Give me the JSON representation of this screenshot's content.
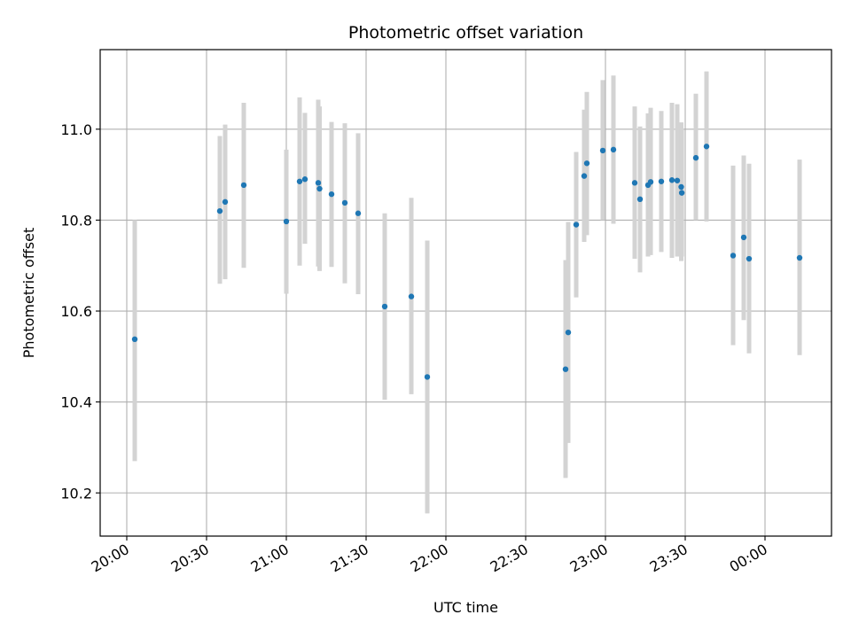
{
  "chart_data": {
    "type": "scatter",
    "title": "Photometric offset variation",
    "xlabel": "UTC time",
    "ylabel": "Photometric offset",
    "x_unit": "UTC time (HH:MM)",
    "xlim": [
      "19:50",
      "24:25"
    ],
    "ylim": [
      10.105,
      11.175
    ],
    "x_ticks": [
      {
        "value": "20:00",
        "label": "20:00"
      },
      {
        "value": "20:30",
        "label": "20:30"
      },
      {
        "value": "21:00",
        "label": "21:00"
      },
      {
        "value": "21:30",
        "label": "21:30"
      },
      {
        "value": "22:00",
        "label": "22:00"
      },
      {
        "value": "22:30",
        "label": "22:30"
      },
      {
        "value": "23:00",
        "label": "23:00"
      },
      {
        "value": "23:30",
        "label": "23:30"
      },
      {
        "value": "24:00",
        "label": "00:00"
      }
    ],
    "y_ticks": [
      10.2,
      10.4,
      10.6,
      10.8,
      11.0
    ],
    "grid": true,
    "marker_color": "#1f77b4",
    "errorbar_color": "#d3d3d3",
    "points": [
      {
        "time": "20:03",
        "y": 10.538,
        "low": 10.27,
        "high": 10.8
      },
      {
        "time": "20:35",
        "y": 10.82,
        "low": 10.66,
        "high": 10.985
      },
      {
        "time": "20:37",
        "y": 10.84,
        "low": 10.67,
        "high": 11.01
      },
      {
        "time": "20:44",
        "y": 10.877,
        "low": 10.695,
        "high": 11.058
      },
      {
        "time": "21:00",
        "y": 10.797,
        "low": 10.638,
        "high": 10.955
      },
      {
        "time": "21:05",
        "y": 10.885,
        "low": 10.7,
        "high": 11.07
      },
      {
        "time": "21:07",
        "y": 10.89,
        "low": 10.748,
        "high": 11.036
      },
      {
        "time": "21:12",
        "y": 10.882,
        "low": 10.698,
        "high": 11.065
      },
      {
        "time": "21:12.5",
        "y": 10.869,
        "low": 10.688,
        "high": 11.05
      },
      {
        "time": "21:17",
        "y": 10.857,
        "low": 10.697,
        "high": 11.016
      },
      {
        "time": "21:22",
        "y": 10.838,
        "low": 10.661,
        "high": 11.013
      },
      {
        "time": "21:27",
        "y": 10.815,
        "low": 10.637,
        "high": 10.991
      },
      {
        "time": "21:37",
        "y": 10.61,
        "low": 10.405,
        "high": 10.815
      },
      {
        "time": "21:47",
        "y": 10.632,
        "low": 10.417,
        "high": 10.849
      },
      {
        "time": "21:53",
        "y": 10.455,
        "low": 10.155,
        "high": 10.755
      },
      {
        "time": "22:45",
        "y": 10.472,
        "low": 10.233,
        "high": 10.712
      },
      {
        "time": "22:46",
        "y": 10.553,
        "low": 10.31,
        "high": 10.796
      },
      {
        "time": "22:49",
        "y": 10.79,
        "low": 10.63,
        "high": 10.95
      },
      {
        "time": "22:52",
        "y": 10.897,
        "low": 10.752,
        "high": 11.043
      },
      {
        "time": "22:53",
        "y": 10.925,
        "low": 10.767,
        "high": 11.082
      },
      {
        "time": "22:59",
        "y": 10.953,
        "low": 10.8,
        "high": 11.108
      },
      {
        "time": "23:03",
        "y": 10.955,
        "low": 10.792,
        "high": 11.118
      },
      {
        "time": "23:11",
        "y": 10.882,
        "low": 10.715,
        "high": 11.05
      },
      {
        "time": "23:13",
        "y": 10.846,
        "low": 10.685,
        "high": 11.006
      },
      {
        "time": "23:16",
        "y": 10.877,
        "low": 10.72,
        "high": 11.035
      },
      {
        "time": "23:17",
        "y": 10.884,
        "low": 10.723,
        "high": 11.047
      },
      {
        "time": "23:21",
        "y": 10.885,
        "low": 10.73,
        "high": 11.04
      },
      {
        "time": "23:25",
        "y": 10.888,
        "low": 10.717,
        "high": 11.058
      },
      {
        "time": "23:27",
        "y": 10.887,
        "low": 10.72,
        "high": 11.055
      },
      {
        "time": "23:28.5",
        "y": 10.873,
        "low": 10.71,
        "high": 11.015
      },
      {
        "time": "23:28.7",
        "y": 10.86,
        "low": 10.72,
        "high": 11.0
      },
      {
        "time": "23:34",
        "y": 10.937,
        "low": 10.8,
        "high": 11.078
      },
      {
        "time": "23:38",
        "y": 10.962,
        "low": 10.797,
        "high": 11.127
      },
      {
        "time": "23:48",
        "y": 10.722,
        "low": 10.525,
        "high": 10.92
      },
      {
        "time": "23:52",
        "y": 10.762,
        "low": 10.58,
        "high": 10.942
      },
      {
        "time": "23:54",
        "y": 10.715,
        "low": 10.507,
        "high": 10.924
      },
      {
        "time": "24:13",
        "y": 10.717,
        "low": 10.503,
        "high": 10.933
      }
    ]
  }
}
